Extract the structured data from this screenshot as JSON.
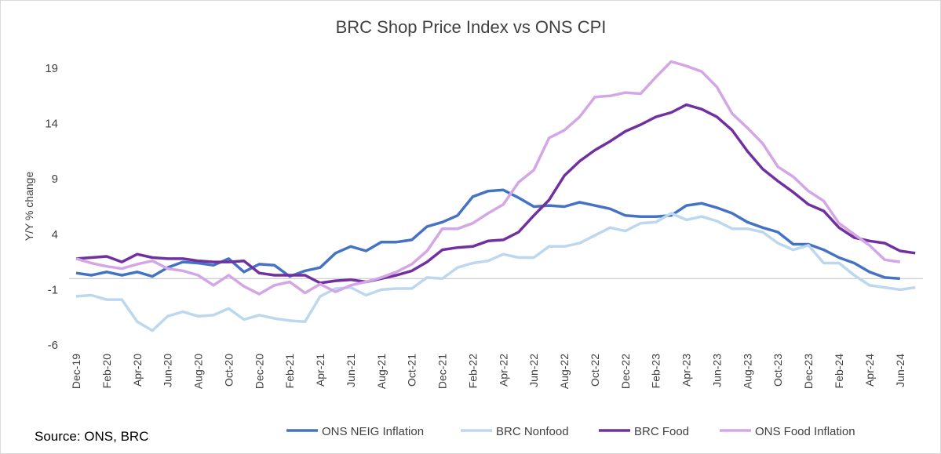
{
  "chart_data": {
    "type": "line",
    "title": "BRC Shop Price Index vs ONS CPI",
    "y_label": "Y/Y % change",
    "source": "Source: ONS, BRC",
    "legend": "bottom",
    "categories": [
      "Dec-19",
      null,
      "Feb-20",
      null,
      "Apr-20",
      null,
      "Jun-20",
      null,
      "Aug-20",
      null,
      "Oct-20",
      null,
      "Dec-20",
      null,
      "Feb-21",
      null,
      "Apr-21",
      null,
      "Jun-21",
      null,
      "Aug-21",
      null,
      "Oct-21",
      null,
      "Dec-21",
      null,
      "Feb-22",
      null,
      "Apr-22",
      null,
      "Jun-22",
      null,
      "Aug-22",
      null,
      "Oct-22",
      null,
      "Dec-22",
      null,
      "Feb-23",
      null,
      "Apr-23",
      null,
      "Jun-23",
      null,
      "Aug-23",
      null,
      "Oct-23",
      null,
      "Dec-23",
      null,
      "Feb-24",
      null,
      "Apr-24",
      null,
      "Jun-24",
      null
    ],
    "ylim": [
      -6,
      19
    ],
    "yticks": [
      -6,
      -1,
      4,
      9,
      14,
      19
    ],
    "series": [
      {
        "name": "ONS NEIG Inflation",
        "color": "#4472c4",
        "values": [
          0.5,
          0.3,
          0.6,
          0.3,
          0.6,
          0.2,
          1.0,
          1.5,
          1.4,
          1.2,
          1.8,
          0.6,
          1.3,
          1.2,
          0.2,
          0.7,
          1.0,
          2.3,
          2.9,
          2.5,
          3.3,
          3.3,
          3.5,
          4.7,
          5.1,
          5.7,
          7.4,
          7.9,
          8.0,
          7.3,
          6.5,
          6.6,
          6.5,
          6.9,
          6.6,
          6.3,
          5.7,
          5.6,
          5.6,
          5.7,
          6.6,
          6.8,
          6.4,
          5.9,
          5.1,
          4.6,
          4.2,
          3.1,
          3.1,
          2.6,
          1.9,
          1.4,
          0.6,
          0.1,
          0.0,
          null
        ]
      },
      {
        "name": "BRC Nonfood",
        "color": "#bdd7ee",
        "values": [
          -1.6,
          -1.5,
          -1.9,
          -1.9,
          -3.9,
          -4.7,
          -3.4,
          -3.0,
          -3.4,
          -3.3,
          -2.7,
          -3.7,
          -3.3,
          -3.6,
          -3.8,
          -3.9,
          -1.6,
          -0.9,
          -0.8,
          -1.5,
          -1.0,
          -0.9,
          -0.9,
          0.1,
          0.0,
          1.0,
          1.4,
          1.6,
          2.2,
          1.9,
          1.9,
          2.9,
          2.9,
          3.2,
          3.9,
          4.6,
          4.3,
          5.0,
          5.1,
          5.9,
          5.3,
          5.6,
          5.2,
          4.5,
          4.5,
          4.2,
          3.2,
          2.6,
          3.0,
          1.4,
          1.4,
          0.3,
          -0.6,
          -0.8,
          -1.0,
          -0.8
        ]
      },
      {
        "name": "BRC Food",
        "color": "#7030a0",
        "values": [
          1.8,
          1.9,
          2.0,
          1.5,
          2.2,
          1.9,
          1.8,
          1.8,
          1.6,
          1.5,
          1.5,
          1.6,
          0.5,
          0.3,
          0.3,
          0.3,
          -0.4,
          -0.2,
          -0.1,
          -0.3,
          0.0,
          0.3,
          0.7,
          1.5,
          2.6,
          2.8,
          2.9,
          3.4,
          3.5,
          4.2,
          5.7,
          7.1,
          9.3,
          10.6,
          11.6,
          12.4,
          13.3,
          13.9,
          14.6,
          15.0,
          15.7,
          15.3,
          14.6,
          13.4,
          11.5,
          9.9,
          8.8,
          7.8,
          6.7,
          6.1,
          4.6,
          3.7,
          3.4,
          3.2,
          2.5,
          2.3
        ]
      },
      {
        "name": "ONS Food Inflation",
        "color": "#d5a6e6",
        "values": [
          1.8,
          1.4,
          1.1,
          0.9,
          1.3,
          1.6,
          0.9,
          0.7,
          0.3,
          -0.6,
          0.3,
          -0.7,
          -1.4,
          -0.6,
          -0.3,
          -1.3,
          -0.5,
          -1.2,
          -0.6,
          -0.3,
          0.1,
          0.6,
          1.3,
          2.5,
          4.5,
          4.5,
          5.0,
          5.9,
          6.7,
          8.7,
          9.8,
          12.7,
          13.4,
          14.6,
          16.4,
          16.5,
          16.8,
          16.7,
          18.2,
          19.6,
          19.2,
          18.7,
          17.3,
          14.9,
          13.6,
          12.2,
          10.1,
          9.2,
          7.9,
          7.0,
          5.0,
          4.0,
          3.0,
          1.7,
          1.5,
          null
        ]
      }
    ]
  }
}
